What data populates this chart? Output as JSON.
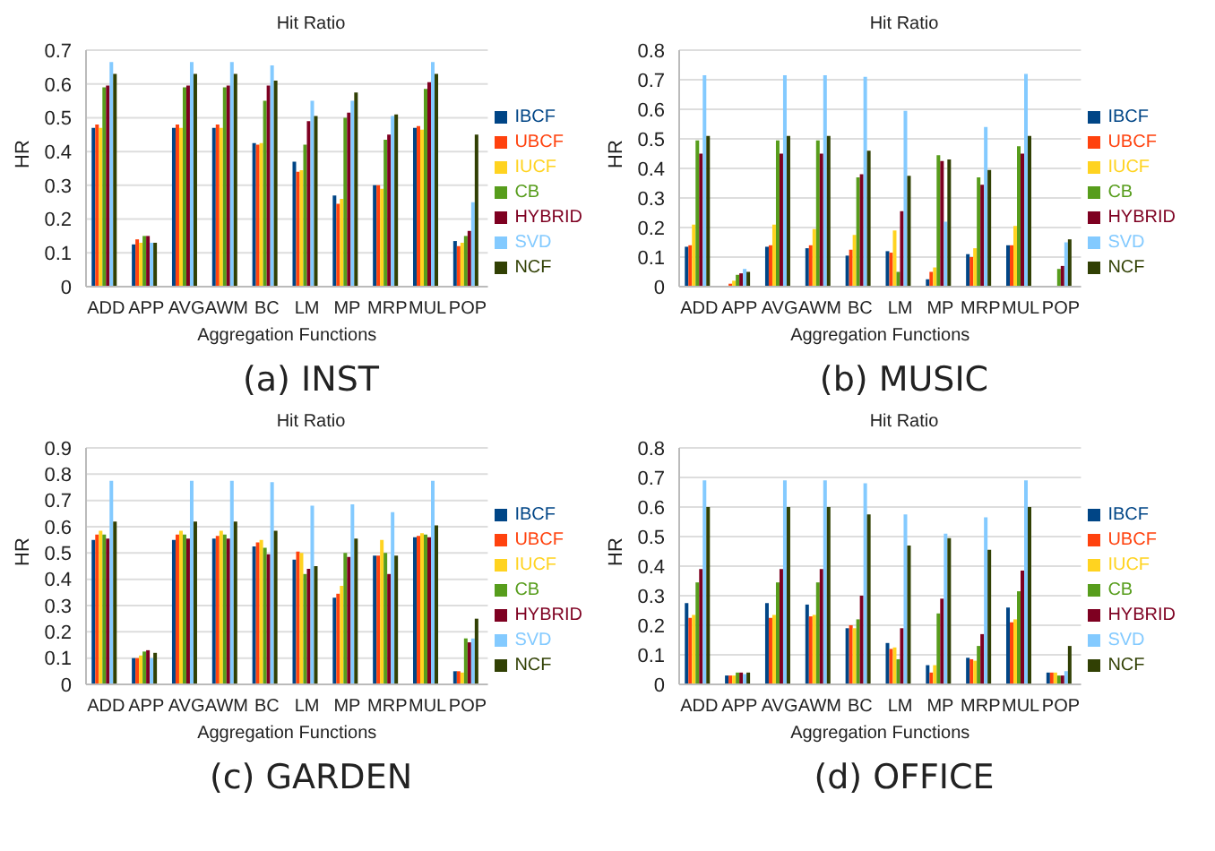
{
  "chart_data": [
    {
      "type": "bar",
      "title": "Hit Ratio",
      "xlabel": "Aggregation Functions",
      "ylabel": "HR",
      "annotations": [
        "(a) INST"
      ],
      "categories": [
        "ADD",
        "APP",
        "AVG",
        "AWM",
        "BC",
        "LM",
        "MP",
        "MRP",
        "MUL",
        "POP"
      ],
      "ylim": [
        0,
        0.7
      ],
      "yticks": [
        0,
        0.1,
        0.2,
        0.3,
        0.4,
        0.5,
        0.6,
        0.7
      ],
      "grid": "y",
      "legend": "right",
      "series": [
        {
          "name": "IBCF",
          "color": "#004586",
          "values": [
            0.47,
            0.125,
            0.47,
            0.47,
            0.425,
            0.37,
            0.27,
            0.3,
            0.47,
            0.135
          ]
        },
        {
          "name": "UBCF",
          "color": "#ff420e",
          "values": [
            0.48,
            0.14,
            0.48,
            0.48,
            0.42,
            0.34,
            0.245,
            0.3,
            0.475,
            0.12
          ]
        },
        {
          "name": "IUCF",
          "color": "#ffd320",
          "values": [
            0.47,
            0.13,
            0.47,
            0.47,
            0.425,
            0.345,
            0.26,
            0.29,
            0.465,
            0.13
          ]
        },
        {
          "name": "CB",
          "color": "#579d1c",
          "values": [
            0.59,
            0.15,
            0.59,
            0.59,
            0.55,
            0.42,
            0.5,
            0.435,
            0.585,
            0.15
          ]
        },
        {
          "name": "HYBRID",
          "color": "#7e0021",
          "values": [
            0.595,
            0.15,
            0.595,
            0.595,
            0.595,
            0.49,
            0.515,
            0.45,
            0.605,
            0.165
          ]
        },
        {
          "name": "SVD",
          "color": "#83caff",
          "values": [
            0.665,
            0.13,
            0.665,
            0.665,
            0.655,
            0.55,
            0.55,
            0.505,
            0.665,
            0.25
          ]
        },
        {
          "name": "NCF",
          "color": "#314004",
          "values": [
            0.63,
            0.13,
            0.63,
            0.63,
            0.61,
            0.505,
            0.575,
            0.51,
            0.63,
            0.45
          ]
        }
      ]
    },
    {
      "type": "bar",
      "title": "Hit Ratio",
      "xlabel": "Aggregation Functions",
      "ylabel": "HR",
      "annotations": [
        "(b) MUSIC"
      ],
      "categories": [
        "ADD",
        "APP",
        "AVG",
        "AWM",
        "BC",
        "LM",
        "MP",
        "MRP",
        "MUL",
        "POP"
      ],
      "ylim": [
        0,
        0.8
      ],
      "yticks": [
        0,
        0.1,
        0.2,
        0.3,
        0.4,
        0.5,
        0.6,
        0.7,
        0.8
      ],
      "grid": "y",
      "legend": "right",
      "series": [
        {
          "name": "IBCF",
          "color": "#004586",
          "values": [
            0.135,
            0,
            0.135,
            0.13,
            0.105,
            0.12,
            0.025,
            0.11,
            0.14,
            0
          ]
        },
        {
          "name": "UBCF",
          "color": "#ff420e",
          "values": [
            0.14,
            0.01,
            0.14,
            0.14,
            0.125,
            0.115,
            0.05,
            0.1,
            0.14,
            0
          ]
        },
        {
          "name": "IUCF",
          "color": "#ffd320",
          "values": [
            0.21,
            0.02,
            0.21,
            0.195,
            0.175,
            0.19,
            0.065,
            0.13,
            0.205,
            0
          ]
        },
        {
          "name": "CB",
          "color": "#579d1c",
          "values": [
            0.495,
            0.04,
            0.495,
            0.495,
            0.37,
            0.05,
            0.445,
            0.37,
            0.475,
            0.06
          ]
        },
        {
          "name": "HYBRID",
          "color": "#7e0021",
          "values": [
            0.45,
            0.045,
            0.45,
            0.45,
            0.38,
            0.255,
            0.425,
            0.345,
            0.45,
            0.07
          ]
        },
        {
          "name": "SVD",
          "color": "#83caff",
          "values": [
            0.715,
            0.06,
            0.715,
            0.715,
            0.71,
            0.595,
            0.22,
            0.54,
            0.72,
            0.15
          ]
        },
        {
          "name": "NCF",
          "color": "#314004",
          "values": [
            0.51,
            0.05,
            0.51,
            0.51,
            0.46,
            0.375,
            0.43,
            0.395,
            0.51,
            0.16
          ]
        }
      ]
    },
    {
      "type": "bar",
      "title": "Hit Ratio",
      "xlabel": "Aggregation Functions",
      "ylabel": "HR",
      "annotations": [
        "(c) GARDEN"
      ],
      "categories": [
        "ADD",
        "APP",
        "AVG",
        "AWM",
        "BC",
        "LM",
        "MP",
        "MRP",
        "MUL",
        "POP"
      ],
      "ylim": [
        0,
        0.9
      ],
      "yticks": [
        0,
        0.1,
        0.2,
        0.3,
        0.4,
        0.5,
        0.6,
        0.7,
        0.8,
        0.9
      ],
      "grid": "y",
      "legend": "right",
      "series": [
        {
          "name": "IBCF",
          "color": "#004586",
          "values": [
            0.55,
            0.1,
            0.55,
            0.555,
            0.525,
            0.475,
            0.33,
            0.49,
            0.56,
            0.05
          ]
        },
        {
          "name": "UBCF",
          "color": "#ff420e",
          "values": [
            0.57,
            0.1,
            0.57,
            0.565,
            0.54,
            0.505,
            0.345,
            0.49,
            0.565,
            0.05
          ]
        },
        {
          "name": "IUCF",
          "color": "#ffd320",
          "values": [
            0.585,
            0.11,
            0.585,
            0.585,
            0.55,
            0.5,
            0.375,
            0.55,
            0.575,
            0.045
          ]
        },
        {
          "name": "CB",
          "color": "#579d1c",
          "values": [
            0.57,
            0.125,
            0.57,
            0.57,
            0.52,
            0.42,
            0.5,
            0.5,
            0.57,
            0.175
          ]
        },
        {
          "name": "HYBRID",
          "color": "#7e0021",
          "values": [
            0.555,
            0.13,
            0.555,
            0.555,
            0.495,
            0.44,
            0.485,
            0.42,
            0.56,
            0.16
          ]
        },
        {
          "name": "SVD",
          "color": "#83caff",
          "values": [
            0.775,
            0.1,
            0.775,
            0.775,
            0.77,
            0.68,
            0.685,
            0.655,
            0.775,
            0.175
          ]
        },
        {
          "name": "NCF",
          "color": "#314004",
          "values": [
            0.62,
            0.12,
            0.62,
            0.62,
            0.585,
            0.45,
            0.555,
            0.49,
            0.605,
            0.25
          ]
        }
      ]
    },
    {
      "type": "bar",
      "title": "Hit Ratio",
      "xlabel": "Aggregation Functions",
      "ylabel": "HR",
      "annotations": [
        "(d) OFFICE"
      ],
      "categories": [
        "ADD",
        "APP",
        "AVG",
        "AWM",
        "BC",
        "LM",
        "MP",
        "MRP",
        "MUL",
        "POP"
      ],
      "ylim": [
        0,
        0.8
      ],
      "yticks": [
        0,
        0.1,
        0.2,
        0.3,
        0.4,
        0.5,
        0.6,
        0.7,
        0.8
      ],
      "grid": "y",
      "legend": "right",
      "series": [
        {
          "name": "IBCF",
          "color": "#004586",
          "values": [
            0.275,
            0.03,
            0.275,
            0.27,
            0.19,
            0.14,
            0.065,
            0.09,
            0.26,
            0.04
          ]
        },
        {
          "name": "UBCF",
          "color": "#ff420e",
          "values": [
            0.225,
            0.03,
            0.225,
            0.23,
            0.2,
            0.12,
            0.04,
            0.085,
            0.21,
            0.04
          ]
        },
        {
          "name": "IUCF",
          "color": "#ffd320",
          "values": [
            0.235,
            0.03,
            0.235,
            0.235,
            0.19,
            0.125,
            0.065,
            0.08,
            0.22,
            0.04
          ]
        },
        {
          "name": "CB",
          "color": "#579d1c",
          "values": [
            0.345,
            0.04,
            0.345,
            0.345,
            0.22,
            0.085,
            0.24,
            0.13,
            0.315,
            0.03
          ]
        },
        {
          "name": "HYBRID",
          "color": "#7e0021",
          "values": [
            0.39,
            0.04,
            0.39,
            0.39,
            0.3,
            0.19,
            0.29,
            0.17,
            0.385,
            0.03
          ]
        },
        {
          "name": "SVD",
          "color": "#83caff",
          "values": [
            0.69,
            0.035,
            0.69,
            0.69,
            0.68,
            0.575,
            0.51,
            0.565,
            0.69,
            0.045
          ]
        },
        {
          "name": "NCF",
          "color": "#314004",
          "values": [
            0.6,
            0.04,
            0.6,
            0.6,
            0.575,
            0.47,
            0.495,
            0.455,
            0.6,
            0.13
          ]
        }
      ]
    }
  ]
}
